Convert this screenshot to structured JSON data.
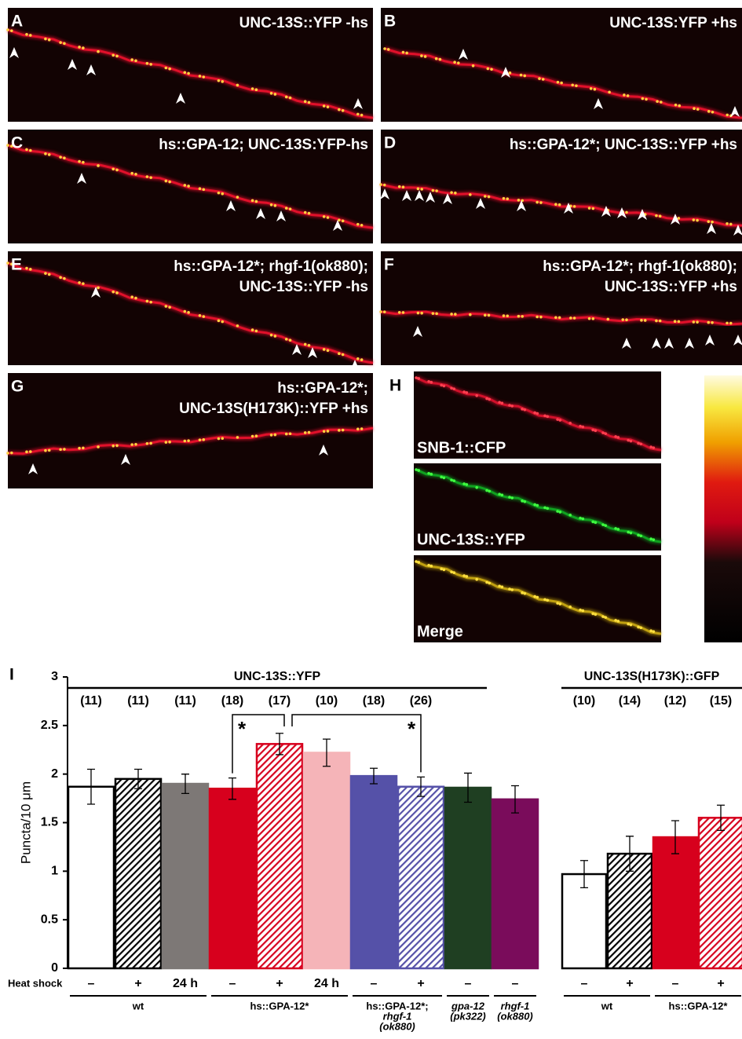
{
  "panels": [
    {
      "letter": "A",
      "lines": [
        "UNC-13S::YFP -hs"
      ]
    },
    {
      "letter": "B",
      "lines": [
        "UNC-13S:YFP +hs"
      ]
    },
    {
      "letter": "C",
      "lines": [
        "hs::GPA-12; UNC-13S:YFP-hs"
      ]
    },
    {
      "letter": "D",
      "lines": [
        "hs::GPA-12*; UNC-13S::YFP +hs"
      ]
    },
    {
      "letter": "E",
      "lines": [
        "hs::GPA-12*; rhgf-1(ok880);",
        "UNC-13S::YFP -hs"
      ]
    },
    {
      "letter": "F",
      "lines": [
        "hs::GPA-12*; rhgf-1(ok880);",
        "UNC-13S::YFP +hs"
      ]
    },
    {
      "letter": "G",
      "lines": [
        "hs::GPA-12*;",
        "UNC-13S(H173K)::YFP +hs"
      ]
    },
    {
      "letter": "H",
      "subpanels": [
        "SNB-1::CFP",
        "UNC-13S::YFP",
        "Merge"
      ]
    }
  ],
  "chart_data": {
    "type": "bar",
    "panel": "I",
    "ylabel": "Puncta/10 μm",
    "xlabel": "Heat shock",
    "ylim": [
      0,
      3
    ],
    "yticks": [
      0,
      0.5,
      1,
      1.5,
      2,
      2.5,
      3
    ],
    "categories": [
      "–",
      "+",
      "24 h",
      "–",
      "+",
      "24 h",
      "–",
      "+",
      "–",
      "–",
      "–",
      "+",
      "–",
      "+"
    ],
    "values": [
      1.87,
      1.95,
      1.9,
      1.85,
      2.31,
      2.22,
      1.98,
      1.87,
      1.86,
      1.74,
      0.97,
      1.18,
      1.35,
      1.55
    ],
    "errors": [
      0.18,
      0.1,
      0.1,
      0.11,
      0.11,
      0.14,
      0.08,
      0.1,
      0.15,
      0.14,
      0.14,
      0.18,
      0.17,
      0.13
    ],
    "n_labels": [
      "(11)",
      "(11)",
      "(11)",
      "(18)",
      "(17)",
      "(10)",
      "(18)",
      "(26)",
      "(10)",
      "(14)",
      "(12)",
      "(15)"
    ],
    "colors": [
      "#ffffff",
      "#000000",
      "#7d7876",
      "#d7001d",
      "#d7001d",
      "#f5b4b8",
      "#5551a8",
      "#5551a8",
      "#1f3f22",
      "#7a0c5b",
      "#ffffff",
      "#000000",
      "#d7001d",
      "#d7001d"
    ],
    "hatched": [
      false,
      true,
      false,
      false,
      true,
      false,
      false,
      true,
      false,
      false,
      false,
      true,
      false,
      true
    ],
    "groups": [
      "UNC-13S::YFP",
      "UNC-13S(H173K)::GFP"
    ],
    "genotypes": [
      [
        "wt"
      ],
      [
        "hs::GPA-12*"
      ],
      [
        "hs::GPA-12*;",
        "rhgf-1",
        "(ok880)"
      ],
      [
        "gpa-12",
        "(pk322)"
      ],
      [
        "rhgf-1",
        "(ok880)"
      ],
      [
        "wt"
      ],
      [
        "hs::GPA-12*"
      ]
    ],
    "significance": [
      "*",
      "*"
    ]
  }
}
